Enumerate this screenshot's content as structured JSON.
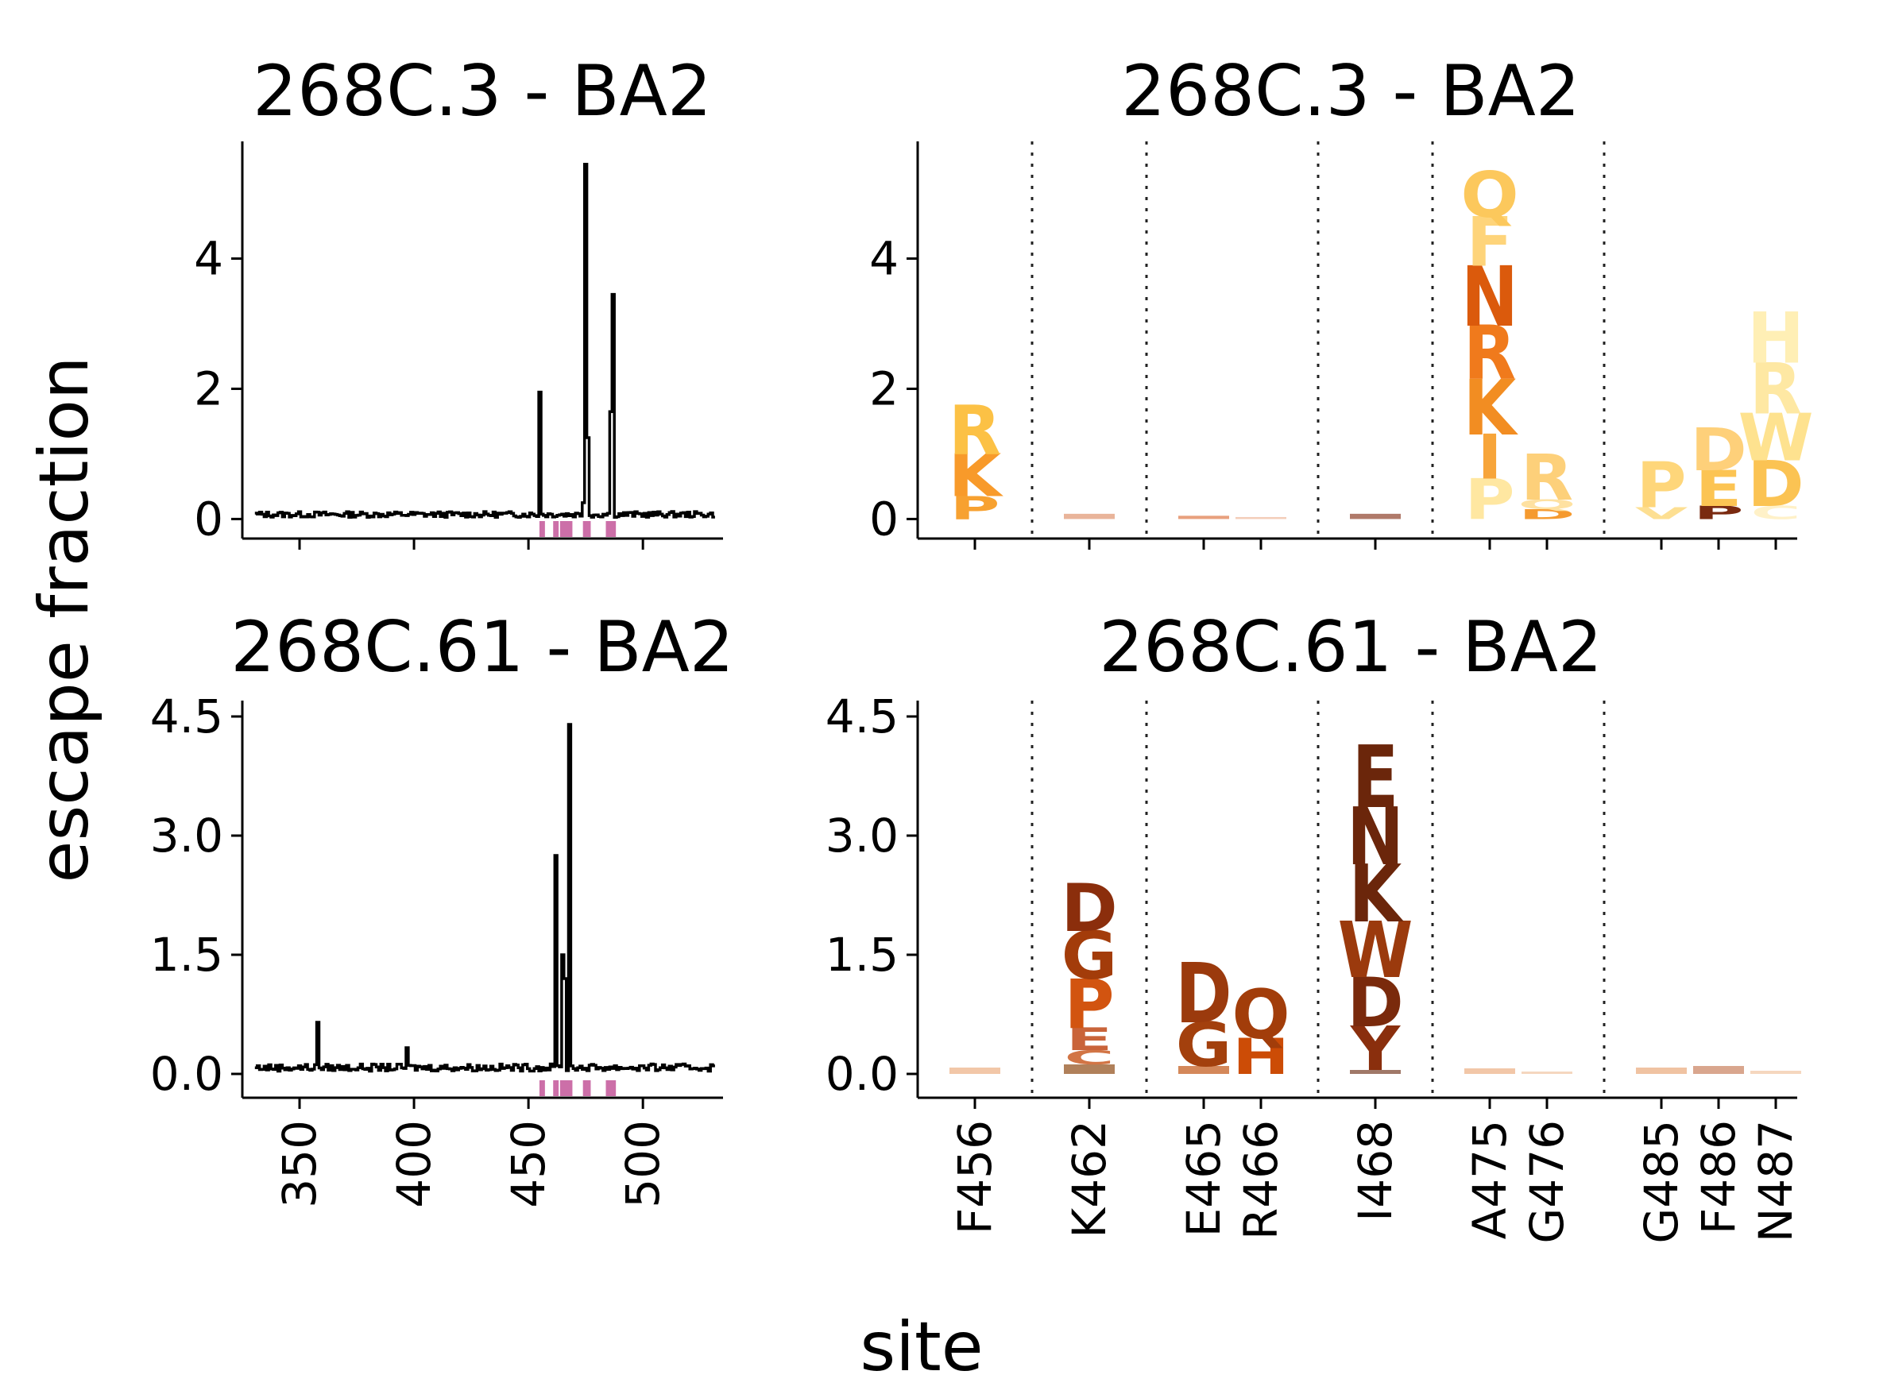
{
  "figure": {
    "ylabel": "escape fraction",
    "xlabel": "site"
  },
  "colors": {
    "line": "#000000",
    "site_marker": "#cc6fa8",
    "divider": "#222222"
  },
  "chart_data": [
    {
      "type": "line",
      "title": "268C.3 - BA2",
      "xlim": [
        325,
        535
      ],
      "ylim": [
        -0.3,
        5.8
      ],
      "xticks": [
        "350",
        "400",
        "450",
        "500"
      ],
      "yticks": [
        "0",
        "2",
        "4"
      ],
      "baseline": 0.07,
      "spikes": [
        {
          "x": 455,
          "y": 1.95
        },
        {
          "x": 474,
          "y": 0.25
        },
        {
          "x": 475,
          "y": 5.45
        },
        {
          "x": 476,
          "y": 1.25
        },
        {
          "x": 486,
          "y": 1.65
        },
        {
          "x": 487,
          "y": 3.45
        }
      ],
      "highlight_sites": [
        456,
        462,
        465,
        466,
        468,
        475,
        476,
        485,
        486,
        487
      ]
    },
    {
      "type": "logo",
      "title": "268C.3 - BA2",
      "ylim": [
        -0.3,
        5.8
      ],
      "yticks": [
        "0",
        "2",
        "4"
      ],
      "sites": [
        "F456",
        "K462",
        "E465",
        "R466",
        "I468",
        "A475",
        "G476",
        "G485",
        "F486",
        "N487"
      ],
      "groups": [
        [
          0
        ],
        [
          1
        ],
        [
          2,
          3
        ],
        [
          4
        ],
        [
          5,
          6
        ],
        [
          7,
          8,
          9
        ]
      ],
      "stacks": [
        [
          {
            "l": "P",
            "h": 0.35,
            "c": "#f7a130"
          },
          {
            "l": "K",
            "h": 0.65,
            "c": "#f89a2a"
          },
          {
            "l": "R",
            "h": 0.75,
            "c": "#fcc145"
          }
        ],
        [
          {
            "l": "·",
            "h": 0.08,
            "c": "#e9b49a"
          }
        ],
        [
          {
            "l": "·",
            "h": 0.05,
            "c": "#e8a07e"
          }
        ],
        [
          {
            "l": "·",
            "h": 0.03,
            "c": "#f3cdb8"
          }
        ],
        [
          {
            "l": "·",
            "h": 0.08,
            "c": "#b07a6a"
          }
        ],
        [
          {
            "l": "P",
            "h": 0.62,
            "c": "#ffe7a1"
          },
          {
            "l": "I",
            "h": 0.68,
            "c": "#f7a53a"
          },
          {
            "l": "K",
            "h": 0.85,
            "c": "#f28d22"
          },
          {
            "l": "R",
            "h": 0.82,
            "c": "#f07a1c"
          },
          {
            "l": "N",
            "h": 0.92,
            "c": "#db5a0c"
          },
          {
            "l": "F",
            "h": 0.75,
            "c": "#fed47a"
          },
          {
            "l": "Q",
            "h": 0.7,
            "c": "#fcc85c"
          }
        ],
        [
          {
            "l": "D",
            "h": 0.15,
            "c": "#f59a2f"
          },
          {
            "l": "Q",
            "h": 0.15,
            "c": "#fee1a1"
          },
          {
            "l": "R",
            "h": 0.7,
            "c": "#fdd07a"
          }
        ],
        [
          {
            "l": "V",
            "h": 0.18,
            "c": "#fddf92"
          },
          {
            "l": "P",
            "h": 0.7,
            "c": "#fed67a"
          }
        ],
        [
          {
            "l": "P",
            "h": 0.2,
            "c": "#7a2a10"
          },
          {
            "l": "E",
            "h": 0.55,
            "c": "#fcc453"
          },
          {
            "l": "D",
            "h": 0.65,
            "c": "#fed07a"
          }
        ],
        [
          {
            "l": "C",
            "h": 0.2,
            "c": "#fff1c8"
          },
          {
            "l": "D",
            "h": 0.7,
            "c": "#fbc353"
          },
          {
            "l": "W",
            "h": 0.72,
            "c": "#fee28f"
          },
          {
            "l": "R",
            "h": 0.78,
            "c": "#fee8a3"
          },
          {
            "l": "H",
            "h": 0.78,
            "c": "#ffefb5"
          }
        ]
      ]
    },
    {
      "type": "line",
      "title": "268C.61 - BA2",
      "xlim": [
        325,
        535
      ],
      "ylim": [
        -0.3,
        4.7
      ],
      "xticks": [
        "350",
        "400",
        "450",
        "500"
      ],
      "yticks": [
        "0.0",
        "1.5",
        "3.0",
        "4.5"
      ],
      "baseline": 0.08,
      "spikes": [
        {
          "x": 358,
          "y": 0.65
        },
        {
          "x": 397,
          "y": 0.33
        },
        {
          "x": 462,
          "y": 2.75
        },
        {
          "x": 465,
          "y": 1.5
        },
        {
          "x": 466,
          "y": 1.2
        },
        {
          "x": 468,
          "y": 4.4
        }
      ],
      "highlight_sites": [
        456,
        462,
        465,
        466,
        468,
        475,
        476,
        485,
        486,
        487
      ]
    },
    {
      "type": "logo",
      "title": "268C.61 - BA2",
      "ylim": [
        -0.3,
        4.7
      ],
      "yticks": [
        "0.0",
        "1.5",
        "3.0",
        "4.5"
      ],
      "sites": [
        "F456",
        "K462",
        "E465",
        "R466",
        "I468",
        "A475",
        "G476",
        "G485",
        "F486",
        "N487"
      ],
      "groups": [
        [
          0
        ],
        [
          1
        ],
        [
          2,
          3
        ],
        [
          4
        ],
        [
          5,
          6
        ],
        [
          7,
          8,
          9
        ]
      ],
      "stacks": [
        [
          {
            "l": "·",
            "h": 0.08,
            "c": "#f2c7a8"
          }
        ],
        [
          {
            "l": "·",
            "h": 0.12,
            "c": "#b0805a"
          },
          {
            "l": "C",
            "h": 0.18,
            "c": "#d27545"
          },
          {
            "l": "E",
            "h": 0.28,
            "c": "#c9643a"
          },
          {
            "l": "P",
            "h": 0.62,
            "c": "#d25410"
          },
          {
            "l": "G",
            "h": 0.6,
            "c": "#a33c0a"
          },
          {
            "l": "D",
            "h": 0.6,
            "c": "#8b2e0c"
          }
        ],
        [
          {
            "l": "·",
            "h": 0.1,
            "c": "#d4885a"
          },
          {
            "l": "G",
            "h": 0.55,
            "c": "#a3400d"
          },
          {
            "l": "D",
            "h": 0.75,
            "c": "#9b3a0d"
          }
        ],
        [
          {
            "l": "H",
            "h": 0.45,
            "c": "#cc4c06"
          },
          {
            "l": "Q",
            "h": 0.62,
            "c": "#a23d0a"
          }
        ],
        [
          {
            "l": "·",
            "h": 0.05,
            "c": "#a07868"
          },
          {
            "l": "Y",
            "h": 0.55,
            "c": "#8a2f0d"
          },
          {
            "l": "D",
            "h": 0.62,
            "c": "#7a2a0c"
          },
          {
            "l": "W",
            "h": 0.7,
            "c": "#9b3a0d"
          },
          {
            "l": "K",
            "h": 0.72,
            "c": "#6b260b"
          },
          {
            "l": "N",
            "h": 0.72,
            "c": "#6b260b"
          },
          {
            "l": "E",
            "h": 0.78,
            "c": "#6b260b"
          }
        ],
        [
          {
            "l": "·",
            "h": 0.07,
            "c": "#f2c7a8"
          }
        ],
        [
          {
            "l": "·",
            "h": 0.03,
            "c": "#f5d7bf"
          }
        ],
        [
          {
            "l": "·",
            "h": 0.08,
            "c": "#f0c3a2"
          }
        ],
        [
          {
            "l": "·",
            "h": 0.1,
            "c": "#d9a68e"
          }
        ],
        [
          {
            "l": "·",
            "h": 0.04,
            "c": "#f5d7bf"
          }
        ]
      ]
    }
  ]
}
